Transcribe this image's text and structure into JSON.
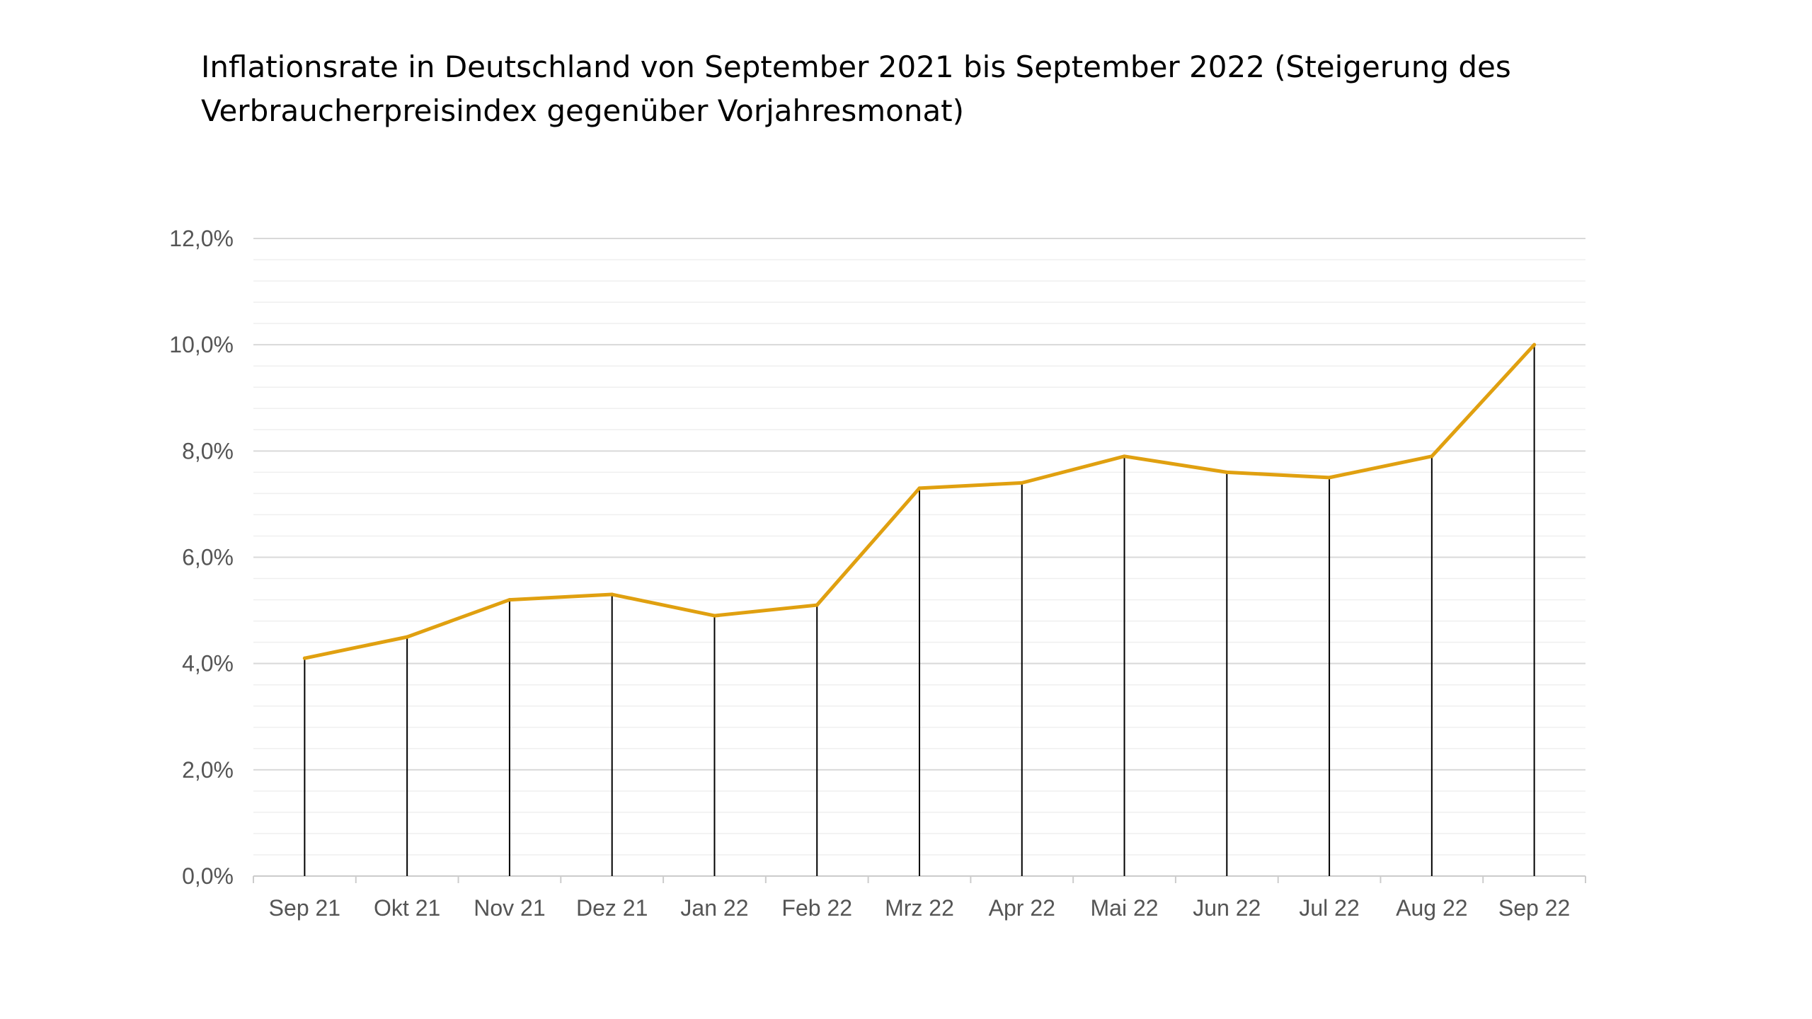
{
  "chart_data": {
    "type": "line",
    "title": "Inflationsrate in Deutschland von September 2021 bis September 2022 (Steigerung des Verbraucherpreisindex gegenüber Vorjahresmonat)",
    "xlabel": "",
    "ylabel": "",
    "categories": [
      "Sep 21",
      "Okt 21",
      "Nov 21",
      "Dez 21",
      "Jan 22",
      "Feb 22",
      "Mrz 22",
      "Apr 22",
      "Mai 22",
      "Jun 22",
      "Jul 22",
      "Aug 22",
      "Sep 22"
    ],
    "series": [
      {
        "values": [
          4.1,
          4.5,
          5.2,
          5.3,
          4.9,
          5.1,
          7.3,
          7.4,
          7.9,
          7.6,
          7.5,
          7.9,
          10.0
        ]
      }
    ],
    "ylim": [
      0,
      12
    ],
    "y_ticks": [
      0,
      2,
      4,
      6,
      8,
      10,
      12
    ],
    "y_tick_labels": [
      "0,0%",
      "2,0%",
      "4,0%",
      "6,0%",
      "8,0%",
      "10,0%",
      "12,0%"
    ],
    "grid": true,
    "minor_grid": true,
    "drop_lines": true,
    "legend": "none",
    "colors": {
      "line": "#E0A010",
      "drop_line": "#000000",
      "major_grid": "#D9D9D9",
      "minor_grid": "#EFEFEF",
      "axis": "#CCCCCC",
      "tick_text": "#555555"
    }
  }
}
